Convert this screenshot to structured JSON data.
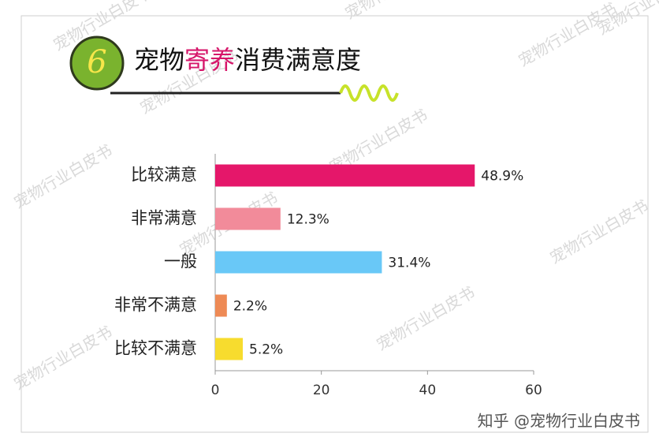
{
  "chart_data": {
    "type": "hbar",
    "badge": 6,
    "title_parts": [
      {
        "text": "宠物",
        "color": "#111111"
      },
      {
        "text": "寄养",
        "color": "#d6166a"
      },
      {
        "text": "消费满意度",
        "color": "#111111"
      }
    ],
    "categories": [
      "比较满意",
      "非常满意",
      "一般",
      "非常不满意",
      "比较不满意"
    ],
    "values": [
      48.9,
      12.3,
      31.4,
      2.2,
      5.2
    ],
    "value_labels": [
      "48.9%",
      "12.3%",
      "31.4%",
      "2.2%",
      "5.2%"
    ],
    "colors": [
      "#e5176a",
      "#f28b9a",
      "#69c8f7",
      "#ee8a55",
      "#f7dc2e"
    ],
    "xlim": [
      0,
      60
    ],
    "xticks": [
      0,
      20,
      40,
      60
    ],
    "watermark": "宠物行业白皮书",
    "credit": "知乎 @宠物行业白皮书"
  }
}
